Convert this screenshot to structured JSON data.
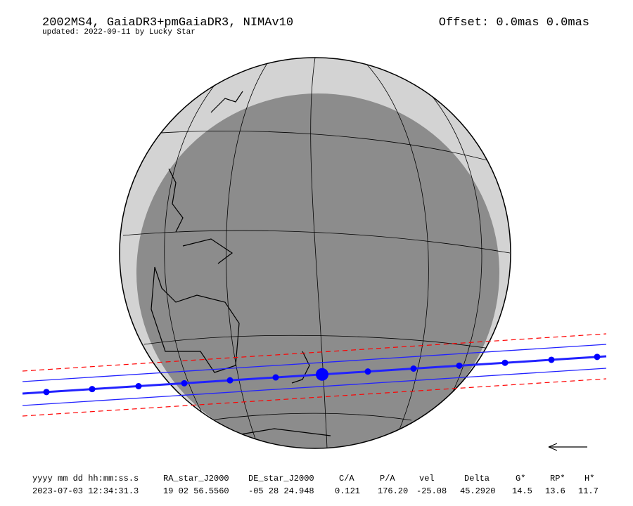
{
  "header": {
    "title": "2002MS4, GaiaDR3+pmGaiaDR3, NIMAv10",
    "subtitle": "updated: 2022-09-11 by Lucky Star",
    "offset": "Offset: 0.0mas 0.0mas"
  },
  "table": {
    "columns": [
      "yyyy mm dd hh:mm:ss.s",
      "RA_star_J2000",
      "DE_star_J2000",
      "C/A",
      "P/A",
      "vel",
      "Delta",
      "G*",
      "RP*",
      "H*"
    ],
    "rows": [
      [
        "2023-07-03 12:34:31.3",
        "19 02 56.5560",
        "-05 28 24.948",
        "0.121",
        "176.20",
        "-25.08",
        "45.2920",
        "14.5",
        "13.6",
        "11.7"
      ]
    ]
  }
}
